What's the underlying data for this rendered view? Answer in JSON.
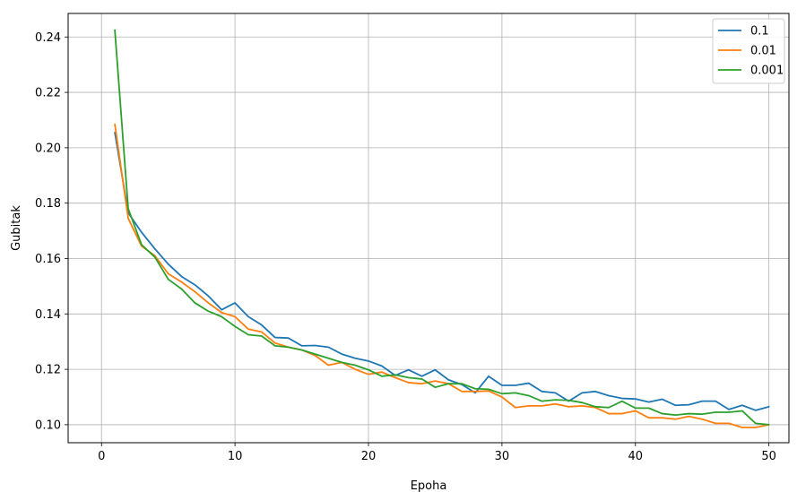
{
  "chart_data": {
    "type": "line",
    "title": "",
    "xlabel": "Epoha",
    "ylabel": "Gubitak",
    "xlim": [
      -2.5,
      51.5
    ],
    "ylim": [
      0.0935,
      0.2485
    ],
    "xticks": [
      0,
      10,
      20,
      30,
      40,
      50
    ],
    "yticks": [
      0.1,
      0.12,
      0.14,
      0.16,
      0.18,
      0.2,
      0.22,
      0.24
    ],
    "ytick_labels": [
      "0.10",
      "0.12",
      "0.14",
      "0.16",
      "0.18",
      "0.20",
      "0.22",
      "0.24"
    ],
    "grid": true,
    "legend_position": "top-right",
    "x": [
      1,
      2,
      3,
      4,
      5,
      6,
      7,
      8,
      9,
      10,
      11,
      12,
      13,
      14,
      15,
      16,
      17,
      18,
      19,
      20,
      21,
      22,
      23,
      24,
      25,
      26,
      27,
      28,
      29,
      30,
      31,
      32,
      33,
      34,
      35,
      36,
      37,
      38,
      39,
      40,
      41,
      42,
      43,
      44,
      45,
      46,
      47,
      48,
      49,
      50
    ],
    "series": [
      {
        "name": "0.1",
        "color": "#1f77b4",
        "values": [
          0.2055,
          0.1765,
          0.1695,
          0.1635,
          0.158,
          0.1535,
          0.1505,
          0.1465,
          0.1415,
          0.144,
          0.139,
          0.136,
          0.1315,
          0.1313,
          0.1285,
          0.1286,
          0.128,
          0.1255,
          0.124,
          0.123,
          0.1212,
          0.1178,
          0.1198,
          0.1175,
          0.1198,
          0.1162,
          0.1145,
          0.1115,
          0.1175,
          0.1142,
          0.1142,
          0.115,
          0.112,
          0.1115,
          0.1085,
          0.1115,
          0.112,
          0.1105,
          0.1095,
          0.1093,
          0.1082,
          0.1092,
          0.107,
          0.1072,
          0.1085,
          0.1085,
          0.1055,
          0.107,
          0.1052,
          0.1065
        ]
      },
      {
        "name": "0.01",
        "color": "#ff7f0e",
        "values": [
          0.2085,
          0.1745,
          0.1645,
          0.161,
          0.1545,
          0.1515,
          0.148,
          0.144,
          0.1405,
          0.139,
          0.1345,
          0.1335,
          0.1295,
          0.128,
          0.127,
          0.125,
          0.1215,
          0.1225,
          0.12,
          0.1182,
          0.119,
          0.117,
          0.1152,
          0.1148,
          0.1158,
          0.1148,
          0.112,
          0.112,
          0.1122,
          0.11,
          0.1062,
          0.1068,
          0.1068,
          0.1075,
          0.1065,
          0.1068,
          0.1062,
          0.104,
          0.104,
          0.105,
          0.1025,
          0.1025,
          0.102,
          0.103,
          0.102,
          0.1005,
          0.1005,
          0.099,
          0.099,
          0.1
        ]
      },
      {
        "name": "0.001",
        "color": "#2ca02c",
        "values": [
          0.2425,
          0.178,
          0.165,
          0.1605,
          0.1525,
          0.149,
          0.144,
          0.141,
          0.139,
          0.1355,
          0.1325,
          0.132,
          0.1285,
          0.128,
          0.127,
          0.1255,
          0.124,
          0.1225,
          0.1215,
          0.1198,
          0.1175,
          0.118,
          0.117,
          0.1165,
          0.1135,
          0.1148,
          0.1148,
          0.113,
          0.1128,
          0.1112,
          0.1115,
          0.1105,
          0.1085,
          0.109,
          0.1088,
          0.108,
          0.1065,
          0.1062,
          0.1085,
          0.106,
          0.106,
          0.104,
          0.1035,
          0.104,
          0.1038,
          0.1045,
          0.1045,
          0.105,
          0.1005,
          0.1
        ]
      }
    ]
  }
}
